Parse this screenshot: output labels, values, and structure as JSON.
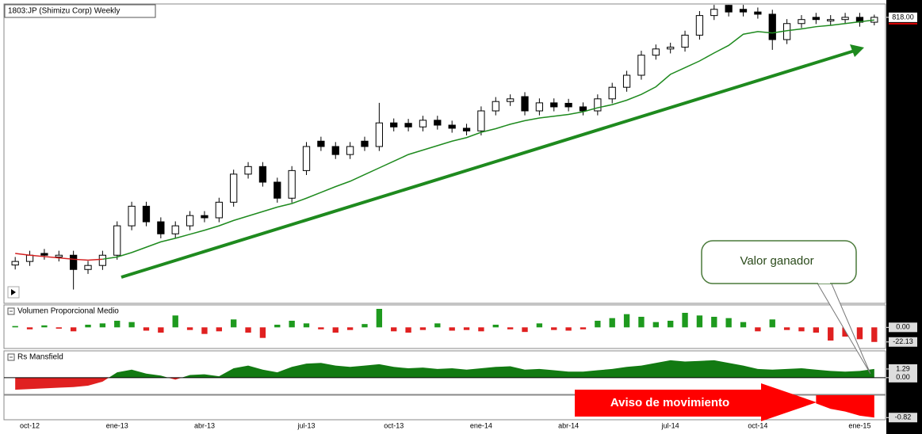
{
  "chart_data": [
    {
      "type": "candlestick",
      "title": "1803:JP (Shimizu Corp) Weekly",
      "categories": [
        null,
        "oct-12",
        null,
        null,
        null,
        null,
        null,
        "ene-13",
        null,
        null,
        null,
        null,
        null,
        "abr-13",
        null,
        null,
        null,
        null,
        null,
        null,
        "jul-13",
        null,
        null,
        null,
        null,
        null,
        "oct-13",
        null,
        null,
        null,
        null,
        null,
        "ene-14",
        null,
        null,
        null,
        null,
        null,
        "abr-14",
        null,
        null,
        null,
        null,
        null,
        null,
        "jul-14",
        null,
        null,
        null,
        null,
        null,
        "oct-14",
        null,
        null,
        null,
        null,
        null,
        null,
        "ene-15",
        null
      ],
      "open": [
        262,
        270,
        288,
        280,
        284,
        252,
        261,
        284,
        350,
        394,
        359,
        332,
        350,
        373,
        368,
        403,
        466,
        483,
        448,
        412,
        474,
        540,
        528,
        510,
        540,
        528,
        581,
        580,
        572,
        587,
        576,
        569,
        563,
        608,
        629,
        640,
        608,
        626,
        625,
        617,
        608,
        635,
        661,
        688,
        733,
        747,
        751,
        778,
        822,
        845,
        836,
        830,
        825,
        768,
        804,
        818,
        810,
        813,
        818,
        807
      ],
      "high": [
        280,
        294,
        298,
        294,
        294,
        271,
        294,
        360,
        404,
        404,
        369,
        360,
        383,
        383,
        413,
        476,
        493,
        493,
        458,
        484,
        538,
        550,
        538,
        538,
        550,
        626,
        591,
        590,
        597,
        597,
        586,
        579,
        618,
        639,
        645,
        650,
        636,
        636,
        635,
        627,
        645,
        671,
        698,
        743,
        757,
        761,
        788,
        832,
        846,
        846,
        846,
        840,
        835,
        814,
        823,
        828,
        823,
        828,
        828,
        824
      ],
      "low": [
        252,
        260,
        274,
        270,
        207,
        242,
        251,
        274,
        340,
        349,
        322,
        322,
        340,
        358,
        358,
        393,
        456,
        438,
        402,
        402,
        464,
        518,
        500,
        500,
        518,
        518,
        562,
        562,
        562,
        566,
        559,
        553,
        553,
        598,
        619,
        598,
        598,
        607,
        607,
        598,
        598,
        625,
        651,
        678,
        723,
        737,
        741,
        768,
        812,
        820,
        820,
        815,
        745,
        758,
        794,
        803,
        800,
        803,
        797,
        800
      ],
      "close": [
        270,
        284,
        284,
        284,
        252,
        261,
        284,
        350,
        394,
        359,
        332,
        350,
        373,
        368,
        403,
        466,
        483,
        448,
        412,
        474,
        528,
        528,
        510,
        528,
        528,
        581,
        572,
        572,
        587,
        576,
        569,
        563,
        608,
        629,
        635,
        608,
        626,
        617,
        617,
        608,
        635,
        661,
        688,
        733,
        747,
        751,
        778,
        822,
        836,
        830,
        830,
        825,
        768,
        804,
        813,
        813,
        813,
        818,
        807,
        818
      ],
      "up_color": "#ffffff",
      "down_color": "#000000",
      "moving_averages": [
        {
          "color": "#d42020",
          "values": [
            288,
            284,
            281,
            278,
            275,
            273,
            275,
            null,
            null,
            null,
            null,
            null,
            null,
            null,
            null,
            null,
            null,
            null,
            null,
            null,
            null,
            null,
            null,
            null,
            null,
            null,
            null,
            null,
            null,
            null,
            null,
            null,
            null,
            null,
            null,
            null,
            null,
            null,
            null,
            null,
            null,
            null,
            null,
            null,
            null,
            null,
            null,
            null,
            null,
            null,
            null,
            null,
            null,
            null,
            null,
            null,
            null,
            null,
            null,
            null
          ]
        },
        {
          "color": "#1e8a1e",
          "values": [
            null,
            null,
            null,
            null,
            null,
            null,
            275,
            280,
            290,
            302,
            314,
            322,
            331,
            340,
            350,
            362,
            372,
            382,
            392,
            400,
            412,
            425,
            438,
            450,
            465,
            480,
            495,
            510,
            520,
            530,
            540,
            548,
            560,
            568,
            578,
            586,
            592,
            596,
            600,
            606,
            615,
            622,
            632,
            645,
            662,
            690,
            705,
            720,
            738,
            755,
            780,
            786,
            783,
            788,
            792,
            797,
            800,
            804,
            808,
            812
          ]
        }
      ],
      "ylim": [
        176,
        848
      ],
      "yticks": [
        {
          "value": 818,
          "label": "818.00"
        }
      ],
      "callout": "Valor ganador"
    },
    {
      "type": "bar",
      "title": "Volumen Proporcional Medio",
      "values": [
        2,
        -3,
        3,
        -2,
        -6,
        4,
        6,
        10,
        8,
        -5,
        -8,
        18,
        -4,
        -10,
        -6,
        12,
        -8,
        -16,
        4,
        10,
        6,
        -3,
        -8,
        -4,
        5,
        28,
        -6,
        -8,
        -4,
        6,
        -5,
        -4,
        -6,
        4,
        -3,
        -7,
        6,
        -4,
        -5,
        -3,
        10,
        14,
        20,
        16,
        8,
        10,
        22,
        18,
        16,
        14,
        8,
        -6,
        12,
        -4,
        -6,
        -8,
        -20,
        -14,
        -18,
        -22.13
      ],
      "positive_color": "#1e9a1e",
      "negative_color": "#e02020",
      "ylim": [
        -32,
        34
      ],
      "yticks": [
        {
          "value": 0,
          "label": "0.00"
        },
        {
          "value": -22.13,
          "label": "-22.13"
        }
      ]
    },
    {
      "type": "area",
      "title": "Rs Mansfield",
      "values": [
        -1.8,
        -1.7,
        -1.6,
        -1.5,
        -1.4,
        -1.2,
        -0.6,
        0.8,
        1.2,
        0.6,
        0.3,
        -0.3,
        0.4,
        0.5,
        0.2,
        1.4,
        1.8,
        1.2,
        0.8,
        1.6,
        2.1,
        2.2,
        1.8,
        1.6,
        1.8,
        2.0,
        1.6,
        1.4,
        1.5,
        1.3,
        1.4,
        1.2,
        1.4,
        1.6,
        1.7,
        1.2,
        1.3,
        1.1,
        0.9,
        0.9,
        1.1,
        1.3,
        1.6,
        1.8,
        2.2,
        2.6,
        2.4,
        2.5,
        2.6,
        2.2,
        1.8,
        1.3,
        1.2,
        1.3,
        1.4,
        1.2,
        1.0,
        0.9,
        1.0,
        1.29
      ],
      "positive_color": "#127a12",
      "negative_color": "#e02020",
      "ylim": [
        -2.5,
        4
      ],
      "yticks": [
        {
          "value": 1.29,
          "label": "1.29"
        },
        {
          "value": 0,
          "label": "0.00"
        }
      ]
    },
    {
      "type": "area",
      "values": [
        null,
        null,
        null,
        null,
        null,
        null,
        null,
        null,
        null,
        null,
        null,
        null,
        null,
        null,
        null,
        null,
        null,
        null,
        null,
        null,
        null,
        null,
        null,
        null,
        null,
        null,
        null,
        null,
        null,
        null,
        null,
        null,
        null,
        null,
        null,
        null,
        null,
        null,
        null,
        null,
        null,
        null,
        null,
        null,
        null,
        null,
        null,
        null,
        null,
        null,
        null,
        null,
        null,
        null,
        null,
        -0.3,
        -0.5,
        -0.6,
        -0.75,
        -0.82
      ],
      "positive_color": "#127a12",
      "negative_color": "#ff0000",
      "ylim": [
        -0.9,
        0
      ],
      "yticks": [
        {
          "value": -0.82,
          "label": "-0.82"
        }
      ],
      "callout": "Aviso de movimiento"
    }
  ]
}
